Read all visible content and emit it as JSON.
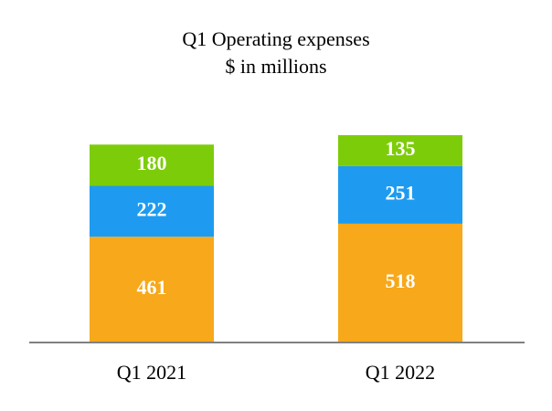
{
  "chart_data": {
    "type": "stacked_bar",
    "title": "Q1 Operating expenses",
    "subtitle": "$ in millions",
    "categories": [
      "Q1 2021",
      "Q1 2022"
    ],
    "series": [
      {
        "color": "#f7a81b",
        "values": [
          461,
          518
        ]
      },
      {
        "color": "#1e9bf0",
        "values": [
          222,
          251
        ]
      },
      {
        "color": "#7dcc0a",
        "values": [
          180,
          135
        ]
      }
    ]
  }
}
